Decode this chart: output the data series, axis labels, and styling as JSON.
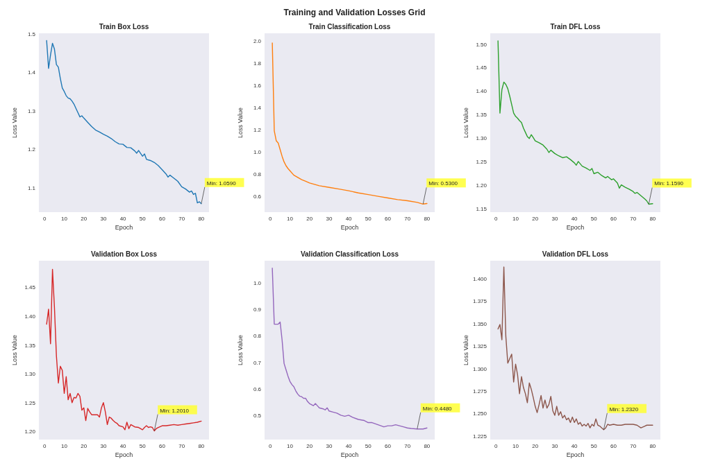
{
  "chart_data": [
    {
      "type": "line",
      "title": "Train Box Loss",
      "xlabel": "Epoch",
      "ylabel": "Loss Value",
      "color": "#1f77b4",
      "xlim": [
        -2.95,
        83.95
      ],
      "xticks": [
        0,
        10,
        20,
        30,
        40,
        50,
        60,
        70,
        80
      ],
      "ylim": [
        1.037,
        1.501
      ],
      "yticks": [
        1.1,
        1.2,
        1.3,
        1.4,
        1.5
      ],
      "annotations": [
        "Training and Validation Losses Grid",
        {
          "text": "Min: 1.0590",
          "x": 80,
          "y": 1.059
        }
      ],
      "x": [
        1,
        2,
        3,
        4,
        5,
        6,
        7,
        8,
        9,
        10,
        11,
        12,
        13,
        14,
        15,
        16,
        17,
        18,
        19,
        20,
        22,
        24,
        26,
        28,
        30,
        32,
        34,
        36,
        38,
        40,
        42,
        44,
        46,
        47,
        48,
        50,
        51,
        52,
        54,
        56,
        58,
        60,
        62,
        63,
        64,
        66,
        68,
        70,
        72,
        74,
        75,
        76,
        77,
        78,
        79,
        80
      ],
      "values": [
        1.482,
        1.41,
        1.445,
        1.475,
        1.46,
        1.42,
        1.413,
        1.384,
        1.359,
        1.35,
        1.339,
        1.333,
        1.331,
        1.325,
        1.317,
        1.306,
        1.295,
        1.284,
        1.287,
        1.281,
        1.27,
        1.259,
        1.25,
        1.245,
        1.239,
        1.234,
        1.228,
        1.22,
        1.214,
        1.213,
        1.205,
        1.204,
        1.196,
        1.19,
        1.197,
        1.182,
        1.188,
        1.174,
        1.171,
        1.166,
        1.158,
        1.147,
        1.136,
        1.128,
        1.133,
        1.125,
        1.117,
        1.103,
        1.097,
        1.089,
        1.092,
        1.083,
        1.086,
        1.061,
        1.064,
        1.059
      ]
    },
    {
      "type": "line",
      "title": "Train Classification Loss",
      "xlabel": "Epoch",
      "ylabel": "Loss Value",
      "color": "#ff7f0e",
      "xlim": [
        -2.95,
        83.95
      ],
      "xticks": [
        0,
        10,
        20,
        30,
        40,
        50,
        60,
        70,
        80
      ],
      "ylim": [
        0.457,
        2.067
      ],
      "yticks": [
        0.6,
        0.8,
        {
          "value": 1,
          "label": "1.0"
        },
        1.2,
        1.4,
        1.6,
        1.8,
        {
          "value": 2,
          "label": "2.0"
        }
      ],
      "annotations": [
        {
          "text": "Min: 0.5300",
          "x": 78,
          "y": 0.53
        }
      ],
      "x": [
        1,
        2,
        3,
        4,
        5,
        6,
        7,
        8,
        9,
        10,
        12,
        14,
        16,
        18,
        20,
        25,
        30,
        35,
        40,
        45,
        50,
        55,
        60,
        65,
        70,
        75,
        78,
        80
      ],
      "values": [
        1.98,
        1.19,
        1.1,
        1.08,
        1.02,
        0.96,
        0.91,
        0.875,
        0.85,
        0.83,
        0.79,
        0.77,
        0.75,
        0.735,
        0.72,
        0.695,
        0.68,
        0.665,
        0.65,
        0.63,
        0.615,
        0.6,
        0.585,
        0.57,
        0.56,
        0.545,
        0.53,
        0.535
      ]
    },
    {
      "type": "line",
      "title": "Train DFL Loss",
      "xlabel": "Epoch",
      "ylabel": "Loss Value",
      "color": "#2ca02c",
      "xlim": [
        -2.95,
        83.95
      ],
      "xticks": [
        0,
        10,
        20,
        30,
        40,
        50,
        60,
        70,
        80
      ],
      "ylim": [
        1.142,
        1.523
      ],
      "yticks": [
        1.15,
        {
          "value": 1.2,
          "label": "1.20"
        },
        1.25,
        {
          "value": 1.3,
          "label": "1.30"
        },
        1.35,
        {
          "value": 1.4,
          "label": "1.40"
        },
        1.45,
        {
          "value": 1.5,
          "label": "1.50"
        }
      ],
      "annotations": [
        {
          "text": "Min: 1.1590",
          "x": 78,
          "y": 1.159
        }
      ],
      "x": [
        1,
        2,
        3,
        4,
        5,
        6,
        7,
        8,
        9,
        10,
        11,
        12,
        13,
        14,
        15,
        16,
        17,
        18,
        19,
        20,
        22,
        24,
        26,
        27,
        28,
        30,
        32,
        34,
        36,
        38,
        40,
        41,
        42,
        44,
        46,
        48,
        49,
        50,
        52,
        54,
        56,
        57,
        59,
        60,
        62,
        63,
        64,
        66,
        68,
        70,
        71,
        72,
        74,
        76,
        77,
        78,
        80
      ],
      "values": [
        1.507,
        1.353,
        1.403,
        1.419,
        1.414,
        1.405,
        1.389,
        1.371,
        1.353,
        1.346,
        1.342,
        1.337,
        1.333,
        1.321,
        1.312,
        1.303,
        1.299,
        1.307,
        1.301,
        1.294,
        1.29,
        1.285,
        1.276,
        1.269,
        1.274,
        1.267,
        1.262,
        1.258,
        1.26,
        1.254,
        1.247,
        1.242,
        1.25,
        1.24,
        1.236,
        1.231,
        1.235,
        1.224,
        1.227,
        1.22,
        1.215,
        1.218,
        1.211,
        1.213,
        1.204,
        1.193,
        1.2,
        1.195,
        1.191,
        1.186,
        1.182,
        1.184,
        1.177,
        1.17,
        1.166,
        1.159,
        1.16
      ]
    },
    {
      "type": "line",
      "title": "Validation Box Loss",
      "xlabel": "Epoch",
      "ylabel": "Loss Value",
      "color": "#d62728",
      "xlim": [
        -2.95,
        83.95
      ],
      "xticks": [
        0,
        10,
        20,
        30,
        40,
        50,
        60,
        70,
        80
      ],
      "ylim": [
        1.186,
        1.496
      ],
      "yticks": [
        {
          "value": 1.2,
          "label": "1.20"
        },
        1.25,
        {
          "value": 1.3,
          "label": "1.30"
        },
        1.35,
        {
          "value": 1.4,
          "label": "1.40"
        },
        1.45
      ],
      "annotations": [
        {
          "text": "Min: 1.2010",
          "x": 56,
          "y": 1.201
        }
      ],
      "x": [
        1,
        2,
        3,
        4,
        5,
        6,
        7,
        8,
        9,
        10,
        11,
        12,
        13,
        14,
        15,
        16,
        17,
        18,
        19,
        20,
        21,
        22,
        23,
        24,
        26,
        27,
        28,
        29,
        30,
        31,
        32,
        33,
        34,
        35,
        36,
        37,
        38,
        40,
        41,
        42,
        43,
        44,
        46,
        48,
        50,
        51,
        52,
        53,
        54,
        55,
        56,
        57,
        58,
        60,
        62,
        64,
        66,
        68,
        70,
        72,
        74,
        76,
        78,
        80
      ],
      "values": [
        1.386,
        1.412,
        1.352,
        1.481,
        1.415,
        1.331,
        1.284,
        1.313,
        1.306,
        1.266,
        1.295,
        1.255,
        1.266,
        1.25,
        1.259,
        1.258,
        1.266,
        1.261,
        1.237,
        1.241,
        1.219,
        1.24,
        1.234,
        1.229,
        1.229,
        1.229,
        1.225,
        1.241,
        1.25,
        1.234,
        1.212,
        1.225,
        1.223,
        1.219,
        1.216,
        1.214,
        1.21,
        1.208,
        1.203,
        1.216,
        1.205,
        1.212,
        1.208,
        1.207,
        1.203,
        1.207,
        1.21,
        1.207,
        1.208,
        1.207,
        1.201,
        1.205,
        1.207,
        1.21,
        1.21,
        1.211,
        1.212,
        1.211,
        1.212,
        1.213,
        1.214,
        1.215,
        1.216,
        1.218
      ]
    },
    {
      "type": "line",
      "title": "Validation Classification Loss",
      "xlabel": "Epoch",
      "ylabel": "Loss Value",
      "color": "#9467bd",
      "xlim": [
        -2.95,
        83.95
      ],
      "xticks": [
        0,
        10,
        20,
        30,
        40,
        50,
        60,
        70,
        80
      ],
      "ylim": [
        0.408,
        1.084
      ],
      "yticks": [
        0.5,
        0.6,
        0.7,
        0.8,
        0.9,
        {
          "value": 1,
          "label": "1.0"
        }
      ],
      "annotations": [
        {
          "text": "Min: 0.4480",
          "x": 75,
          "y": 0.448
        }
      ],
      "x": [
        1,
        2,
        3,
        4,
        5,
        6,
        7,
        8,
        9,
        10,
        11,
        12,
        13,
        14,
        15,
        16,
        17,
        18,
        19,
        20,
        21,
        22,
        23,
        24,
        25,
        27,
        28,
        29,
        30,
        32,
        34,
        36,
        38,
        40,
        42,
        45,
        48,
        50,
        52,
        55,
        58,
        60,
        62,
        64,
        66,
        68,
        70,
        72,
        75,
        78,
        80
      ],
      "values": [
        1.056,
        0.844,
        0.844,
        0.844,
        0.852,
        0.784,
        0.696,
        0.672,
        0.648,
        0.628,
        0.616,
        0.608,
        0.592,
        0.58,
        0.572,
        0.57,
        0.564,
        0.564,
        0.552,
        0.544,
        0.54,
        0.536,
        0.544,
        0.536,
        0.528,
        0.524,
        0.52,
        0.528,
        0.516,
        0.512,
        0.508,
        0.5,
        0.496,
        0.5,
        0.492,
        0.484,
        0.48,
        0.472,
        0.472,
        0.464,
        0.456,
        0.46,
        0.46,
        0.464,
        0.46,
        0.456,
        0.452,
        0.45,
        0.448,
        0.448,
        0.452
      ]
    },
    {
      "type": "line",
      "title": "Validation DFL Loss",
      "xlabel": "Epoch",
      "ylabel": "Loss Value",
      "color": "#8c564b",
      "xlim": [
        -2.95,
        83.95
      ],
      "xticks": [
        0,
        10,
        20,
        30,
        40,
        50,
        60,
        70,
        80
      ],
      "ylim": [
        1.221,
        1.42
      ],
      "yticks": [
        1.225,
        {
          "value": 1.25,
          "label": "1.250"
        },
        1.275,
        {
          "value": 1.3,
          "label": "1.300"
        },
        1.325,
        {
          "value": 1.35,
          "label": "1.350"
        },
        1.375,
        {
          "value": 1.4,
          "label": "1.400"
        }
      ],
      "annotations": [
        {
          "text": "Min: 1.2320",
          "x": 55,
          "y": 1.232
        }
      ],
      "x": [
        1,
        2,
        3,
        4,
        5,
        6,
        7,
        8,
        9,
        10,
        11,
        12,
        13,
        14,
        15,
        16,
        17,
        18,
        19,
        20,
        21,
        22,
        23,
        24,
        25,
        26,
        27,
        28,
        29,
        30,
        31,
        32,
        33,
        34,
        35,
        36,
        37,
        38,
        39,
        40,
        41,
        42,
        43,
        44,
        45,
        46,
        47,
        48,
        49,
        50,
        51,
        52,
        53,
        54,
        55,
        56,
        57,
        58,
        60,
        62,
        64,
        66,
        68,
        70,
        72,
        74,
        76,
        77,
        78,
        80
      ],
      "values": [
        1.344,
        1.349,
        1.332,
        1.413,
        1.336,
        1.306,
        1.311,
        1.316,
        1.285,
        1.305,
        1.293,
        1.272,
        1.291,
        1.279,
        1.272,
        1.262,
        1.284,
        1.277,
        1.268,
        1.258,
        1.251,
        1.26,
        1.27,
        1.256,
        1.265,
        1.256,
        1.26,
        1.269,
        1.253,
        1.248,
        1.258,
        1.248,
        1.252,
        1.245,
        1.248,
        1.243,
        1.245,
        1.24,
        1.246,
        1.24,
        1.244,
        1.238,
        1.24,
        1.236,
        1.238,
        1.236,
        1.239,
        1.234,
        1.238,
        1.236,
        1.244,
        1.237,
        1.236,
        1.234,
        1.232,
        1.234,
        1.238,
        1.237,
        1.238,
        1.237,
        1.237,
        1.238,
        1.238,
        1.238,
        1.237,
        1.234,
        1.236,
        1.237,
        1.237,
        1.237
      ]
    }
  ]
}
